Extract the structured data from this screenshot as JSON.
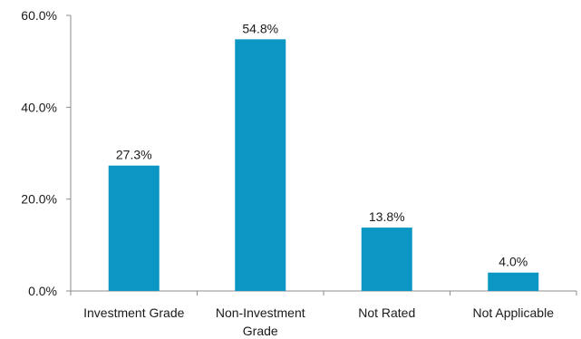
{
  "chart_data": {
    "type": "bar",
    "title": "",
    "xlabel": "",
    "ylabel": "",
    "categories": [
      [
        "Investment Grade"
      ],
      [
        "Non-Investment",
        "Grade"
      ],
      [
        "Not Rated"
      ],
      [
        "Not Applicable"
      ]
    ],
    "values": [
      27.3,
      54.8,
      13.8,
      4.0
    ],
    "value_labels": [
      "27.3%",
      "54.8%",
      "13.8%",
      "4.0%"
    ],
    "ylim": [
      0,
      60
    ],
    "yticks": [
      0,
      20,
      40,
      60
    ],
    "ytick_labels": [
      "0.0%",
      "20.0%",
      "40.0%",
      "60.0%"
    ],
    "bar_color": "#0b96c3",
    "grid": false,
    "legend": "none"
  }
}
